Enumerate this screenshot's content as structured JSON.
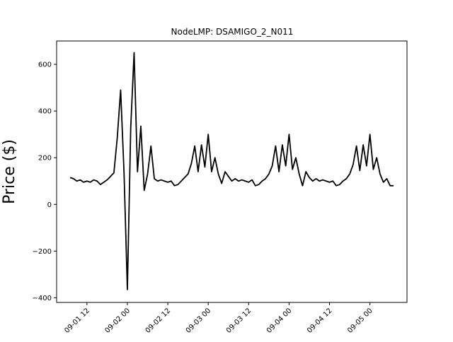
{
  "chart_data": {
    "type": "line",
    "title": "NodeLMP: DSAMIGO_2_N011",
    "y_label": "Price ($)",
    "x": [
      "09-01 07",
      "09-01 08",
      "09-01 09",
      "09-01 10",
      "09-01 11",
      "09-01 12",
      "09-01 13",
      "09-01 14",
      "09-01 15",
      "09-01 16",
      "09-01 17",
      "09-01 18",
      "09-01 19",
      "09-01 20",
      "09-01 21",
      "09-01 22",
      "09-01 23",
      "09-02 00",
      "09-02 01",
      "09-02 02",
      "09-02 03",
      "09-02 04",
      "09-02 05",
      "09-02 06",
      "09-02 07",
      "09-02 08",
      "09-02 09",
      "09-02 10",
      "09-02 11",
      "09-02 12",
      "09-02 13",
      "09-02 14",
      "09-02 15",
      "09-02 16",
      "09-02 17",
      "09-02 18",
      "09-02 19",
      "09-02 20",
      "09-02 21",
      "09-02 22",
      "09-02 23",
      "09-03 00",
      "09-03 01",
      "09-03 02",
      "09-03 03",
      "09-03 04",
      "09-03 05",
      "09-03 06",
      "09-03 07",
      "09-03 08",
      "09-03 09",
      "09-03 10",
      "09-03 11",
      "09-03 12",
      "09-03 13",
      "09-03 14",
      "09-03 15",
      "09-03 16",
      "09-03 17",
      "09-03 18",
      "09-03 19",
      "09-03 20",
      "09-03 21",
      "09-03 22",
      "09-03 23",
      "09-04 00",
      "09-04 01",
      "09-04 02",
      "09-04 03",
      "09-04 04",
      "09-04 05",
      "09-04 06",
      "09-04 07",
      "09-04 08",
      "09-04 09",
      "09-04 10",
      "09-04 11",
      "09-04 12",
      "09-04 13",
      "09-04 14",
      "09-04 15",
      "09-04 16",
      "09-04 17",
      "09-04 18",
      "09-04 19",
      "09-04 20",
      "09-04 21",
      "09-04 22",
      "09-04 23",
      "09-05 00",
      "09-05 01",
      "09-05 02",
      "09-05 03",
      "09-05 04",
      "09-05 05",
      "09-05 06",
      "09-05 07"
    ],
    "series": [
      {
        "color": "#000000",
        "values": [
          115,
          110,
          100,
          105,
          95,
          100,
          95,
          105,
          100,
          85,
          95,
          105,
          120,
          135,
          285,
          490,
          140,
          -365,
          330,
          650,
          140,
          335,
          60,
          130,
          250,
          110,
          100,
          105,
          100,
          95,
          100,
          80,
          85,
          100,
          115,
          130,
          175,
          250,
          140,
          255,
          160,
          300,
          140,
          200,
          130,
          90,
          140,
          120,
          100,
          110,
          100,
          105,
          100,
          95,
          105,
          80,
          85,
          100,
          110,
          130,
          165,
          250,
          140,
          255,
          165,
          300,
          150,
          200,
          130,
          80,
          140,
          115,
          100,
          110,
          100,
          105,
          100,
          95,
          100,
          80,
          85,
          100,
          110,
          130,
          170,
          250,
          145,
          255,
          165,
          300,
          150,
          200,
          130,
          95,
          110,
          80,
          80
        ]
      }
    ],
    "xlim": [
      "09-01 03",
      "09-05 11"
    ],
    "xticks": [
      "09-01 12",
      "09-02 00",
      "09-02 12",
      "09-03 00",
      "09-03 12",
      "09-04 00",
      "09-04 12",
      "09-05 00"
    ],
    "ylim": [
      -420,
      700
    ],
    "yticks": [
      {
        "value": -400,
        "label": "−400"
      },
      {
        "value": -200,
        "label": "−200"
      },
      0,
      200,
      400,
      600
    ]
  }
}
